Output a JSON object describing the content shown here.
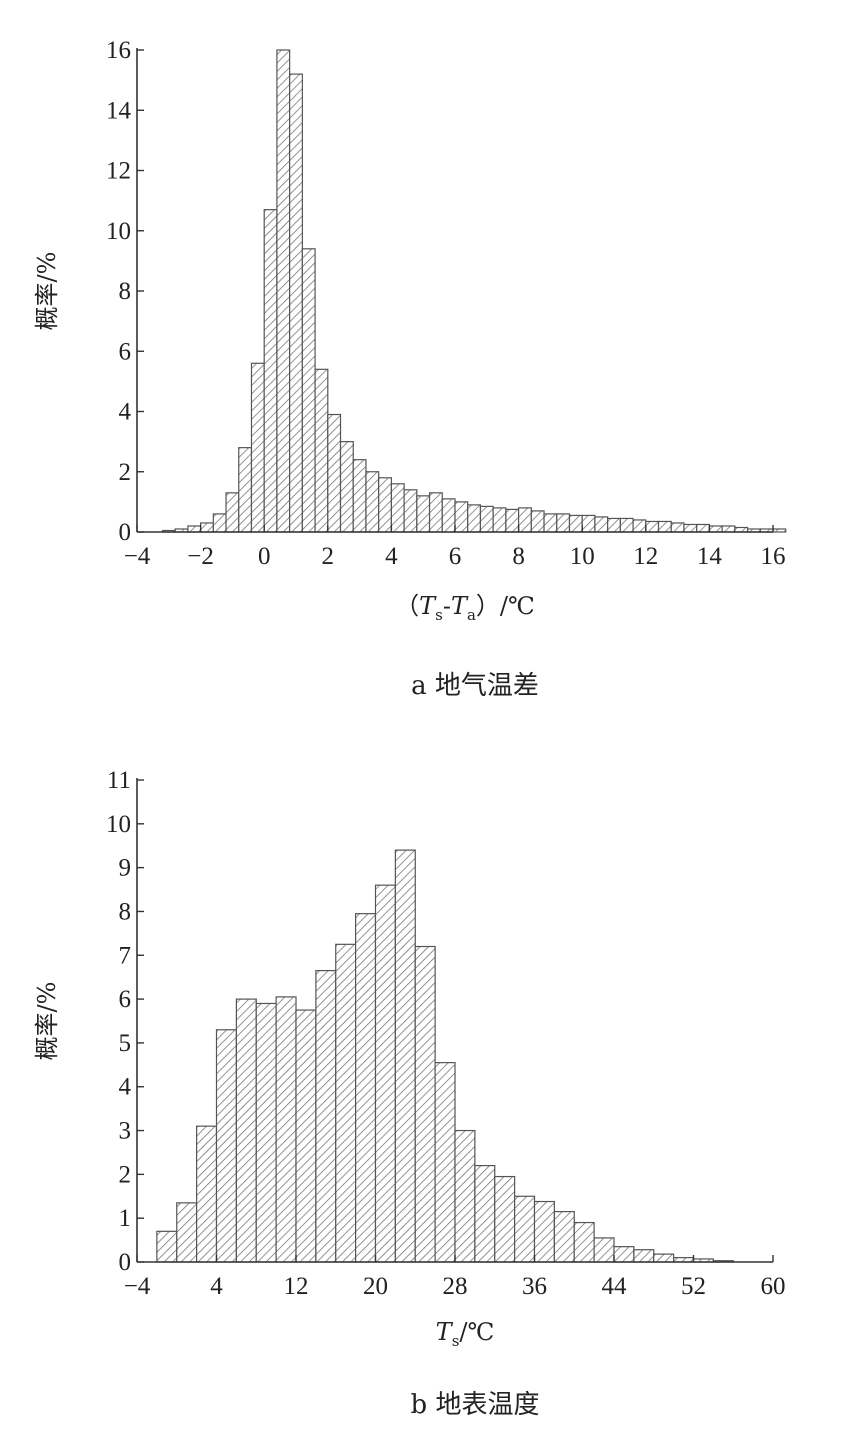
{
  "chart_data": [
    {
      "type": "bar",
      "caption": "a 地气温差",
      "ylabel": "概率/%",
      "xlabel_parts": [
        "（",
        "T",
        "s",
        "-",
        "T",
        "a",
        "）/℃"
      ],
      "xlim": [
        -4,
        16
      ],
      "ylim": [
        0,
        16
      ],
      "xticks": [
        -4,
        -2,
        0,
        2,
        4,
        6,
        8,
        10,
        12,
        14,
        16
      ],
      "xtick_labels": [
        "−4",
        "−2",
        "0",
        "2",
        "4",
        "6",
        "8",
        "10",
        "12",
        "14",
        "16"
      ],
      "yticks": [
        0,
        2,
        4,
        6,
        8,
        10,
        12,
        14,
        16
      ],
      "ytick_labels": [
        "0",
        "2",
        "4",
        "6",
        "8",
        "10",
        "12",
        "14",
        "16"
      ],
      "bin_width": 0.4,
      "bin_start": -3.2,
      "values": [
        0.05,
        0.1,
        0.2,
        0.3,
        0.6,
        1.3,
        2.8,
        5.6,
        10.7,
        16.0,
        15.2,
        9.4,
        5.4,
        3.9,
        3.0,
        2.4,
        2.0,
        1.8,
        1.6,
        1.4,
        1.2,
        1.3,
        1.1,
        1.0,
        0.9,
        0.85,
        0.8,
        0.75,
        0.8,
        0.7,
        0.6,
        0.6,
        0.55,
        0.55,
        0.5,
        0.45,
        0.45,
        0.4,
        0.35,
        0.35,
        0.3,
        0.25,
        0.25,
        0.2,
        0.2,
        0.15,
        0.1,
        0.1,
        0.1
      ],
      "fill": "hatch",
      "grid": false
    },
    {
      "type": "bar",
      "caption": "b 地表温度",
      "ylabel": "概率/%",
      "xlabel_parts": [
        "T",
        "s",
        "/℃"
      ],
      "xlim": [
        -4,
        60
      ],
      "ylim": [
        0,
        11
      ],
      "xticks": [
        -4,
        4,
        12,
        20,
        28,
        36,
        44,
        52,
        60
      ],
      "xtick_labels": [
        "−4",
        "4",
        "12",
        "20",
        "28",
        "36",
        "44",
        "52",
        "60"
      ],
      "yticks": [
        0,
        1,
        2,
        3,
        4,
        5,
        6,
        7,
        8,
        9,
        10,
        11
      ],
      "ytick_labels": [
        "0",
        "1",
        "2",
        "3",
        "4",
        "5",
        "6",
        "7",
        "8",
        "9",
        "10",
        "11"
      ],
      "bin_width": 2,
      "bin_start": -2,
      "values": [
        0.7,
        1.35,
        3.1,
        5.3,
        6.0,
        5.9,
        6.05,
        5.75,
        6.65,
        7.25,
        7.95,
        8.6,
        9.4,
        7.2,
        4.55,
        3.0,
        2.2,
        1.95,
        1.5,
        1.38,
        1.15,
        0.9,
        0.55,
        0.35,
        0.28,
        0.18,
        0.1,
        0.07,
        0.03
      ],
      "fill": "hatch",
      "grid": false
    }
  ]
}
